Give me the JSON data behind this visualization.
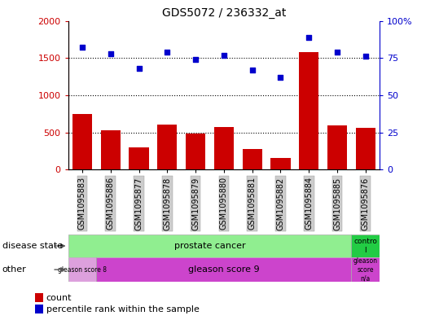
{
  "title": "GDS5072 / 236332_at",
  "samples": [
    "GSM1095883",
    "GSM1095886",
    "GSM1095877",
    "GSM1095878",
    "GSM1095879",
    "GSM1095880",
    "GSM1095881",
    "GSM1095882",
    "GSM1095884",
    "GSM1095885",
    "GSM1095876"
  ],
  "counts": [
    750,
    530,
    300,
    610,
    490,
    570,
    280,
    160,
    1580,
    590,
    560
  ],
  "percentile_ranks": [
    82,
    78,
    68,
    79,
    74,
    77,
    67,
    62,
    89,
    79,
    76
  ],
  "ylim_left": [
    0,
    2000
  ],
  "ylim_right": [
    0,
    100
  ],
  "yticks_left": [
    0,
    500,
    1000,
    1500,
    2000
  ],
  "yticks_right": [
    0,
    25,
    50,
    75,
    100
  ],
  "bar_color": "#cc0000",
  "scatter_color": "#0000cc",
  "disease_state_green": "#90EE90",
  "disease_state_green_dark": "#22cc44",
  "other_pink_light": "#DDA0DD",
  "other_pink_dark": "#CC44CC",
  "tick_bg_color": "#cccccc",
  "xlabel_color": "#cc0000",
  "ylabel_right_color": "#0000cc",
  "legend_count": "count",
  "legend_percentile": "percentile rank within the sample",
  "disease_row_label": "disease state",
  "other_row_label": "other",
  "prostate_cancer_label": "prostate cancer",
  "control_label": "contro\nl",
  "gleason8_label": "gleason score 8",
  "gleason9_label": "gleason score 9",
  "gleasonNA_label": "gleason\nscore\nn/a"
}
